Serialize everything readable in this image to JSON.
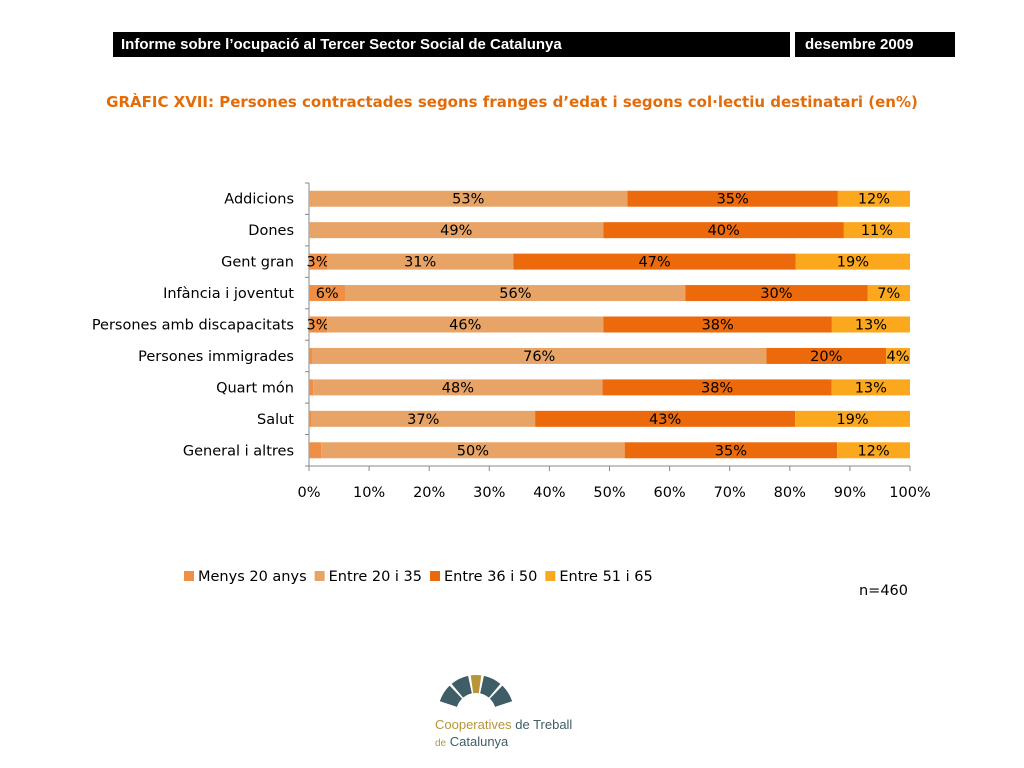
{
  "header": {
    "title": "Informe sobre l’ocupació al Tercer Sector Social de Catalunya",
    "date": "desembre 2009"
  },
  "chart_data": {
    "type": "bar",
    "orientation": "horizontal",
    "stacked": "percent",
    "title": "GRÀFIC XVII: Persones contractades segons franges d’edat i segons col·lectiu destinatari (en%)",
    "categories": [
      "Addicions",
      "Dones",
      "Gent gran",
      "Infància i joventut",
      "Persones amb discapacitats",
      "Persones immigrades",
      "Quart món",
      "Salut",
      "General i altres"
    ],
    "series": [
      {
        "name": "Menys 20 anys",
        "color": "#ee8f45",
        "values": [
          0,
          0,
          3,
          6,
          3,
          0.5,
          0.7,
          0.4,
          2
        ],
        "labels": [
          "",
          "",
          "3%",
          "6%",
          "3%",
          "",
          "",
          "",
          ""
        ]
      },
      {
        "name": "Entre 20 i 35",
        "color": "#e8a467",
        "values": [
          53,
          49,
          31,
          56,
          46,
          76,
          48,
          37,
          50
        ],
        "labels": [
          "53%",
          "49%",
          "31%",
          "56%",
          "46%",
          "76%",
          "48%",
          "37%",
          "50%"
        ]
      },
      {
        "name": "Entre 36 i 50",
        "color": "#ec6a0c",
        "values": [
          35,
          40,
          47,
          30,
          38,
          20,
          38,
          43,
          35
        ],
        "labels": [
          "35%",
          "40%",
          "47%",
          "30%",
          "38%",
          "20%",
          "38%",
          "43%",
          "35%"
        ]
      },
      {
        "name": "Entre 51 i 65",
        "color": "#fba81e",
        "values": [
          12,
          11,
          19,
          7,
          13,
          4,
          13,
          19,
          12
        ],
        "labels": [
          "12%",
          "11%",
          "19%",
          "7%",
          "13%",
          "4%",
          "13%",
          "19%",
          "12%"
        ]
      }
    ],
    "x_ticks": [
      "0%",
      "10%",
      "20%",
      "30%",
      "40%",
      "50%",
      "60%",
      "70%",
      "80%",
      "90%",
      "100%"
    ],
    "xlim": [
      0,
      100
    ],
    "legend": "bottom",
    "grid": false,
    "note": "n=460"
  },
  "logo": {
    "line1_a": "Cooperatives",
    "line1_b": "de Treball",
    "line2_a": "de",
    "line2_b": "Catalunya",
    "color_dark": "#3f5d66",
    "color_gold": "#b8953a"
  }
}
